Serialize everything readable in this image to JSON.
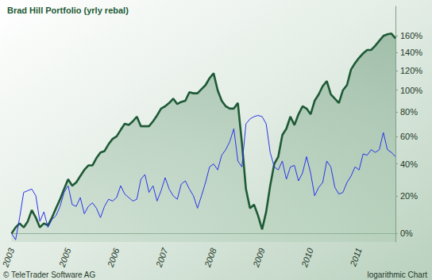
{
  "chart_data": {
    "type": "line",
    "title": "Brad Hill Portfolio (yrly rebal)",
    "annotations": [
      "© TeleTrader Software AG",
      "logarithmic Chart"
    ],
    "categories": [
      "2003",
      null,
      null,
      null,
      null,
      null,
      null,
      null,
      null,
      null,
      null,
      null,
      null,
      null,
      "2005",
      null,
      null,
      null,
      null,
      null,
      null,
      null,
      null,
      null,
      null,
      null,
      "2006",
      null,
      null,
      null,
      null,
      null,
      null,
      null,
      null,
      null,
      null,
      null,
      "2007",
      null,
      null,
      null,
      null,
      null,
      null,
      null,
      null,
      null,
      null,
      null,
      "2008",
      null,
      null,
      null,
      null,
      null,
      null,
      null,
      null,
      null,
      null,
      null,
      "2009",
      null,
      null,
      null,
      null,
      null,
      null,
      null,
      null,
      null,
      null,
      null,
      "2010",
      null,
      null,
      null,
      null,
      null,
      null,
      null,
      null,
      null,
      null,
      null,
      "2011",
      null,
      null,
      null,
      null,
      null,
      null,
      null,
      null,
      null
    ],
    "series": [
      {
        "type": "area",
        "color": "#1d5a36",
        "values": [
          0,
          3,
          5,
          3,
          6,
          12,
          8,
          3,
          5,
          4,
          8,
          13,
          18,
          24,
          30,
          26,
          28,
          32,
          36,
          39,
          39,
          44,
          48,
          49,
          54,
          58,
          60,
          65,
          70,
          69,
          72,
          76,
          68,
          68,
          68,
          72,
          77,
          83,
          85,
          88,
          92,
          87,
          89,
          90,
          98,
          97,
          97,
          101,
          105,
          112,
          117,
          100,
          90,
          85,
          83,
          83,
          88,
          55,
          24,
          13,
          15,
          9,
          2,
          11,
          26,
          40,
          45,
          61,
          66,
          76,
          69,
          78,
          85,
          83,
          78,
          90,
          96,
          104,
          109,
          96,
          92,
          88,
          100,
          105,
          121,
          128,
          134,
          139,
          143,
          143,
          148,
          154,
          160,
          162,
          163,
          157
        ]
      },
      {
        "type": "line",
        "color": "#2a35e8",
        "values": [
          0,
          -3,
          8,
          22,
          23,
          24,
          20,
          6,
          11,
          3,
          7,
          9,
          14,
          22,
          26,
          15,
          14,
          19,
          10,
          14,
          16,
          13,
          8,
          14,
          18,
          17,
          19,
          26,
          21,
          19,
          17,
          18,
          30,
          33,
          22,
          26,
          17,
          23,
          31,
          24,
          20,
          18,
          27,
          29,
          24,
          20,
          13,
          20,
          28,
          38,
          40,
          36,
          46,
          50,
          56,
          66,
          42,
          38,
          70,
          74,
          76,
          77,
          76,
          70,
          48,
          38,
          36,
          42,
          30,
          38,
          39,
          29,
          34,
          45,
          34,
          20,
          25,
          28,
          42,
          38,
          25,
          21,
          22,
          28,
          32,
          38,
          36,
          47,
          46,
          50,
          48,
          50,
          63,
          50,
          48,
          45
        ]
      }
    ],
    "ylim": [
      -4,
      200
    ],
    "yticks": [
      {
        "value": 0,
        "label": "0%"
      },
      {
        "value": 20,
        "label": "20%"
      },
      {
        "value": 40,
        "label": "40%"
      },
      {
        "value": 60,
        "label": "60%"
      },
      {
        "value": 80,
        "label": "80%"
      },
      {
        "value": 100,
        "label": "100%"
      },
      {
        "value": 120,
        "label": "120%"
      },
      {
        "value": 140,
        "label": "140%"
      },
      {
        "value": 160,
        "label": "160%"
      }
    ],
    "log": "y",
    "grid": false
  }
}
